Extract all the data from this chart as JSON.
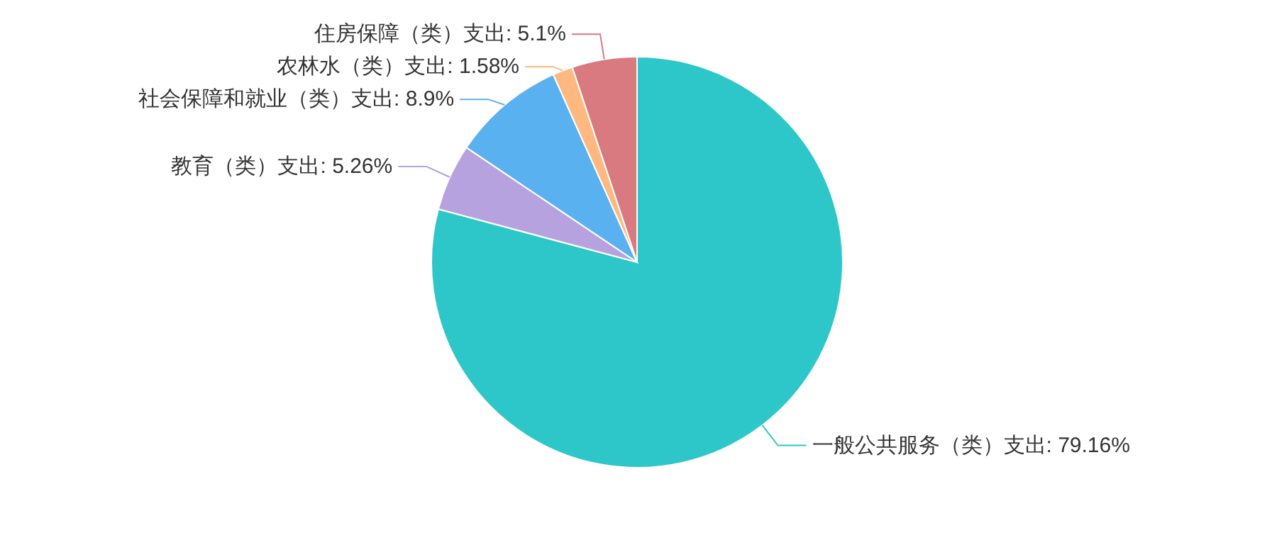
{
  "chart_data": {
    "type": "pie",
    "categories": [
      "一般公共服务（类）支出",
      "教育（类）支出",
      "社会保障和就业（类）支出",
      "农林水（类）支出",
      "住房保障（类）支出"
    ],
    "values": [
      79.16,
      5.26,
      8.9,
      1.58,
      5.1
    ],
    "colors": [
      "#2ec7c9",
      "#b6a2de",
      "#5ab1ef",
      "#ffb980",
      "#d87a80"
    ],
    "value_labels": [
      "79.16%",
      "5.26%",
      "8.9%",
      "1.58%",
      "5.1%"
    ]
  }
}
